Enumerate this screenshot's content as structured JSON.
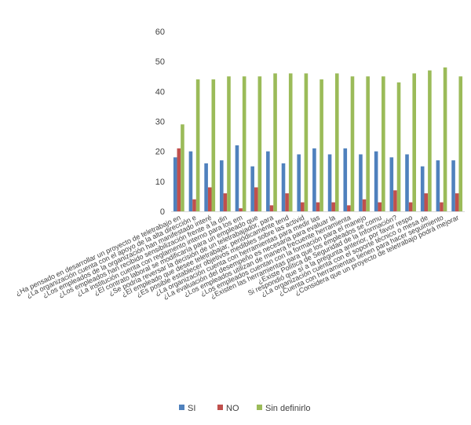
{
  "chart_data": {
    "type": "bar",
    "title": "",
    "xlabel": "",
    "ylabel": "",
    "ylim": [
      0,
      60
    ],
    "yticks": [
      0,
      10,
      20,
      30,
      40,
      50,
      60
    ],
    "grid": false,
    "legend_position": "bottom",
    "categories": [
      "¿Ha pensado en desarrollar un proyecto de teletrabajo en",
      "¿La organización cuenta con el apoyo de la alta dirección e",
      "¿Los empleados de la organización han manifestado interé",
      "¿Los empleados han recibido sensibilización frente a la din",
      "¿La institución cuenta con reglamento interno para los em",
      "¿El contrato laboral se modificaría para un empleado que",
      "¿Se podría reversar la decisión de un teletrabajador, para",
      "¿El empleado que desee teletrabajar, periódicamente tend",
      "¿Es posible establecer objetivos medibles sobre las activid",
      "¿La organización cuenta con herramientas para medir las",
      "¿La evaluación del desempeño es necesaria para evaluar la",
      "¿Los empleados utilizan de manera frecuente herramienta",
      "¿Los empleados cuentan con la formación para el manejo",
      "¿Existen las herramientas para que los empleados se comu",
      "¿Existe Política de Seguridad de la Información?",
      "Si respondió que sí a la pregunta anterior, por favor respo",
      "¿La organización cuenta con el soporte técnico o mesa de",
      "¿Cuenta con herramientas tienen para hacer seguimiento",
      "¿Considera que un proyecto de teletrabajo podrá mejorar"
    ],
    "series": [
      {
        "name": "SI",
        "color": "#4f81bd",
        "values": [
          18,
          20,
          16,
          17,
          22,
          15,
          20,
          16,
          19,
          21,
          19,
          21,
          19,
          20,
          18,
          19,
          15,
          17,
          17
        ]
      },
      {
        "name": "NO",
        "color": "#c0504d",
        "values": [
          21,
          4,
          8,
          6,
          1,
          8,
          2,
          6,
          3,
          3,
          3,
          2,
          4,
          3,
          7,
          3,
          6,
          3,
          6
        ]
      },
      {
        "name": "Sin definirlo",
        "color": "#9bbb59",
        "values": [
          29,
          44,
          44,
          45,
          45,
          45,
          46,
          46,
          46,
          44,
          46,
          45,
          45,
          45,
          43,
          46,
          47,
          48,
          45
        ]
      }
    ]
  }
}
